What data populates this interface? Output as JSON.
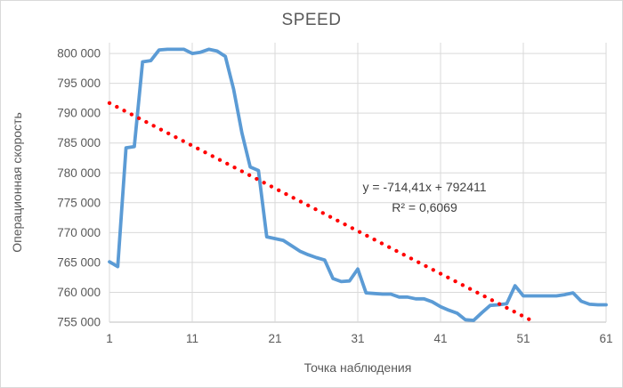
{
  "chart_data": {
    "type": "line",
    "title": "SPEED",
    "xlabel": "Точка наблюдения",
    "ylabel": "Операционная скорость",
    "xlim": [
      1,
      61
    ],
    "ylim": [
      755000,
      801800
    ],
    "x_ticks": [
      1,
      11,
      21,
      31,
      41,
      51,
      61
    ],
    "x_tick_labels": [
      "1",
      "11",
      "21",
      "31",
      "41",
      "51",
      "61"
    ],
    "y_ticks": [
      755000,
      760000,
      765000,
      770000,
      775000,
      780000,
      785000,
      790000,
      795000,
      800000
    ],
    "y_tick_labels": [
      "755 000",
      "760 000",
      "765 000",
      "770 000",
      "775 000",
      "780 000",
      "785 000",
      "790 000",
      "795 000",
      "800 000"
    ],
    "grid": true,
    "legend": "none",
    "series": [
      {
        "name": "SPEED",
        "color": "#5B9BD5",
        "x_start": 1,
        "x_step": 1,
        "values": [
          765100,
          764300,
          784200,
          784400,
          798600,
          798800,
          800600,
          800700,
          800700,
          800700,
          800000,
          800200,
          800700,
          800400,
          799500,
          794000,
          786700,
          781000,
          780400,
          769300,
          769000,
          768700,
          767800,
          766900,
          766300,
          765800,
          765400,
          762300,
          761800,
          761900,
          763900,
          759900,
          759800,
          759700,
          759700,
          759200,
          759200,
          758900,
          758900,
          758400,
          757600,
          757000,
          756500,
          755400,
          755300,
          756600,
          757800,
          757900,
          758100,
          761100,
          759400,
          759400,
          759400,
          759400,
          759400,
          759600,
          759900,
          758500,
          758000,
          757900,
          757900
        ]
      }
    ],
    "trendline": {
      "type": "linear",
      "slope": -714.41,
      "intercept": 792411,
      "equation_label": "y = -714,41x + 792411",
      "r2_label": "R² = 0,6069",
      "r2": 0.6069,
      "color": "#FF0000",
      "style": "dotted"
    },
    "colors": {
      "series_line": "#5B9BD5",
      "trendline": "#FF0000",
      "gridline": "#D9D9D9",
      "axis_line": "#BFBFBF",
      "text": "#595959",
      "annotation_text": "#404040",
      "background": "#FFFFFF"
    }
  }
}
